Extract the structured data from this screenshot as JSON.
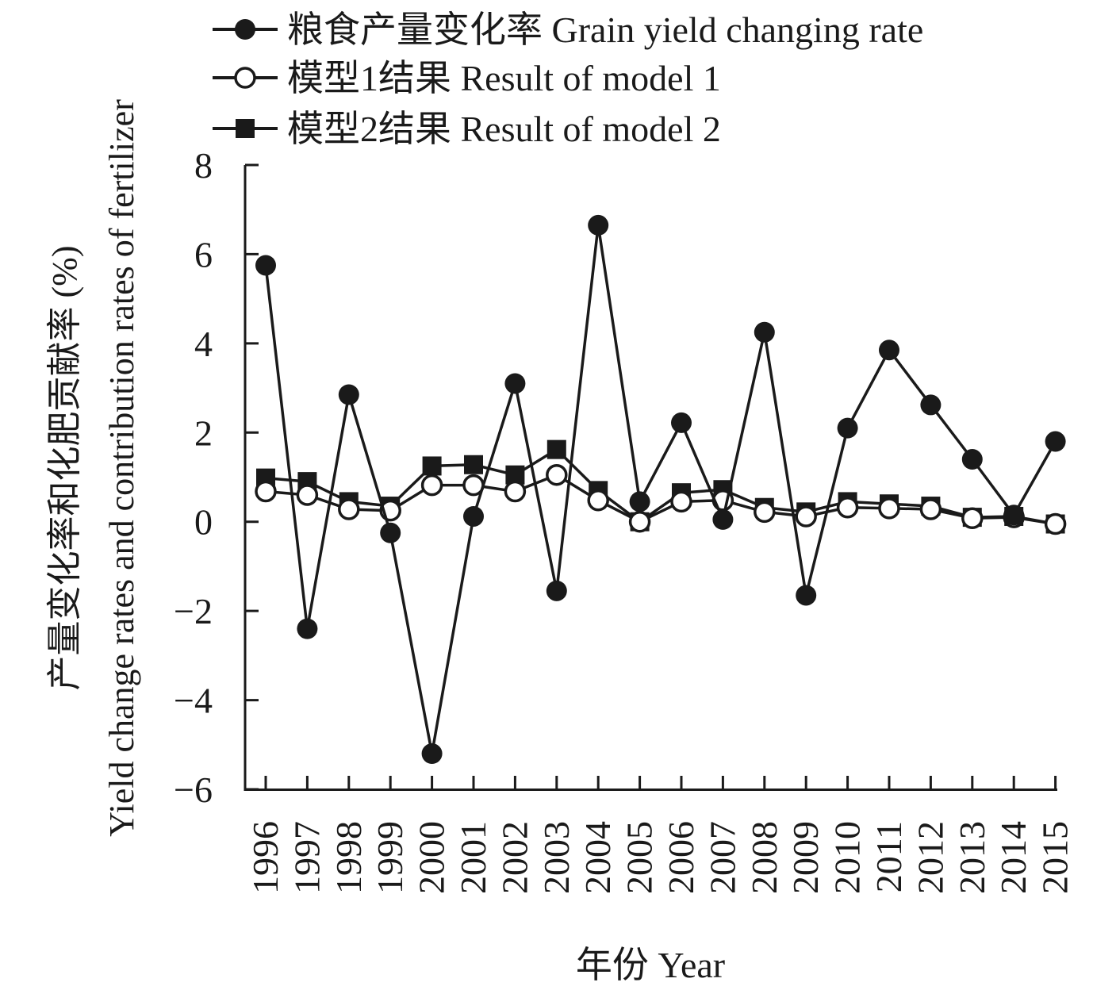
{
  "chart_data": {
    "type": "line",
    "title": "",
    "xlabel": "年份 Year",
    "ylabel_cn": "产量变化率和化肥贡献率 (%)",
    "ylabel_en": "Yield change rates and contribution rates of fertilizer",
    "ylim": [
      -6,
      8
    ],
    "yticks": [
      8,
      6,
      4,
      2,
      0,
      -2,
      -4,
      -6
    ],
    "ytick_labels": [
      "8",
      "6",
      "4",
      "2",
      "0",
      "−2",
      "−4",
      "−6"
    ],
    "legend_position": "top",
    "categories": [
      "1996",
      "1997",
      "1998",
      "1999",
      "2000",
      "2001",
      "2002",
      "2003",
      "2004",
      "2005",
      "2006",
      "2007",
      "2008",
      "2009",
      "2010",
      "2011",
      "2012",
      "2013",
      "2014",
      "2015"
    ],
    "series": [
      {
        "name": "粮食产量变化率 Grain yield changing rate",
        "marker": "filled-circle",
        "values": [
          5.75,
          -2.4,
          2.85,
          -0.25,
          -5.2,
          0.12,
          3.1,
          -1.55,
          6.65,
          0.45,
          2.22,
          0.05,
          4.25,
          -1.65,
          2.1,
          3.85,
          2.62,
          1.4,
          0.15,
          1.8
        ]
      },
      {
        "name": "模型1结果 Result of model 1",
        "marker": "open-circle",
        "values": [
          0.68,
          0.6,
          0.28,
          0.25,
          0.82,
          0.82,
          0.68,
          1.05,
          0.48,
          0.0,
          0.45,
          0.48,
          0.22,
          0.12,
          0.32,
          0.3,
          0.28,
          0.08,
          0.1,
          -0.05
        ]
      },
      {
        "name": "模型2结果 Result of model 2",
        "marker": "filled-square",
        "values": [
          0.98,
          0.9,
          0.45,
          0.35,
          1.25,
          1.28,
          1.05,
          1.62,
          0.7,
          0.0,
          0.65,
          0.72,
          0.32,
          0.22,
          0.45,
          0.4,
          0.35,
          0.1,
          0.12,
          -0.05
        ]
      }
    ]
  }
}
